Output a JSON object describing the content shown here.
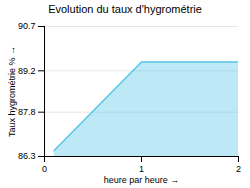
{
  "chart_data": {
    "type": "area",
    "title": "Evolution du taux d'hygrométrie",
    "xlabel": "heure par heure",
    "ylabel": "Taux hygrométrie %",
    "x": [
      0.1,
      1.0,
      2.0
    ],
    "values": [
      86.5,
      89.5,
      89.5
    ],
    "color": "#5bc8e8",
    "xlim": [
      0,
      2
    ],
    "xticks": [
      0,
      1,
      2
    ],
    "ylim": [
      86.3,
      90.7
    ],
    "yticks": [
      86.3,
      87.8,
      89.2,
      90.7
    ],
    "grid": true
  }
}
